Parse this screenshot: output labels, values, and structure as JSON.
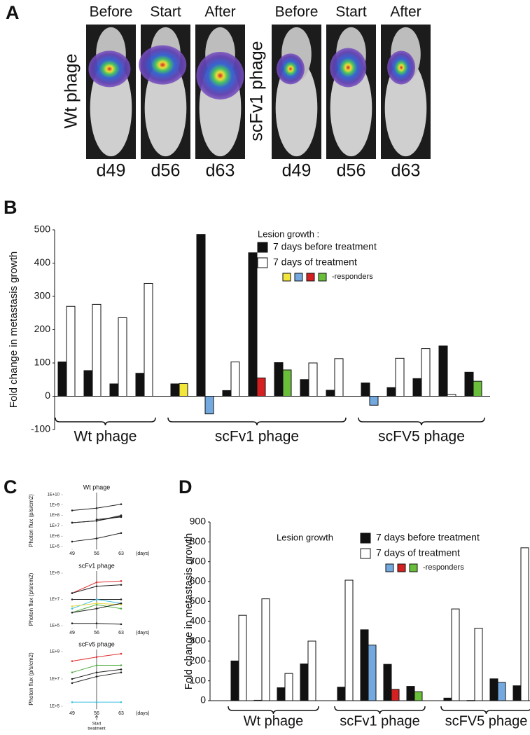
{
  "panel_labels": [
    "A",
    "B",
    "C",
    "D"
  ],
  "panel_a": {
    "groups": [
      {
        "label": "Wt phage",
        "color": "#111111",
        "images": [
          {
            "header": "Before",
            "day": "d49"
          },
          {
            "header": "Start",
            "day": "d56"
          },
          {
            "header": "After",
            "day": "d63"
          }
        ]
      },
      {
        "label": "scFv1 phage",
        "color": "#6fa8dc",
        "images": [
          {
            "header": "Before",
            "day": "d49"
          },
          {
            "header": "Start",
            "day": "d56"
          },
          {
            "header": "After",
            "day": "d63"
          }
        ]
      }
    ]
  },
  "chart_data": [
    {
      "type": "grouped-bar",
      "ylabel": "Fold change in metastasis growth",
      "ylim": [
        -100,
        500
      ],
      "yticks": [
        -100,
        0,
        100,
        200,
        300,
        400,
        500
      ],
      "legend_title": "Lesion growth :",
      "series": [
        {
          "name": "7 days before treatment",
          "color": "#111111"
        },
        {
          "name": "7 days of treatment",
          "color": "#ffffff"
        }
      ],
      "responder_colors": [
        "#f2e63a",
        "#74a9e0",
        "#d42020",
        "#6abf3a"
      ],
      "responder_label": "-responders",
      "groups": [
        {
          "label": "Wt phage",
          "values": [
            [
              103,
              77,
              37,
              69
            ],
            [
              270,
              276,
              236,
              339
            ]
          ],
          "colors": [
            [
              "#111111",
              "#111111",
              "#111111",
              "#111111"
            ],
            [
              "#ffffff",
              "#ffffff",
              "#ffffff",
              "#ffffff"
            ]
          ]
        },
        {
          "label": "scFv1 phage",
          "values": [
            [
              37,
              486,
              17,
              431,
              101,
              50,
              18
            ],
            [
              38,
              -53,
              103,
              55,
              79,
              100,
              113
            ]
          ],
          "colors": [
            [
              "#111111",
              "#111111",
              "#111111",
              "#111111",
              "#111111",
              "#111111",
              "#111111"
            ],
            [
              "#f2e63a",
              "#74a9e0",
              "#ffffff",
              "#d42020",
              "#6abf3a",
              "#ffffff",
              "#ffffff"
            ]
          ]
        },
        {
          "label": "scFV5 phage",
          "values": [
            [
              40,
              26,
              53,
              151,
              72
            ],
            [
              -27,
              114,
              143,
              5,
              45
            ]
          ],
          "colors": [
            [
              "#111111",
              "#111111",
              "#111111",
              "#111111",
              "#111111"
            ],
            [
              "#74a9e0",
              "#ffffff",
              "#ffffff",
              "#ffffff",
              "#6abf3a"
            ]
          ]
        }
      ]
    },
    {
      "type": "line",
      "title": "Wt phage",
      "ylabel": "Photon flux (p/s/cm2)",
      "xlabel": "(days)",
      "x": [
        49,
        56,
        63
      ],
      "xlim": [
        46,
        66
      ],
      "xticks": [
        49,
        56,
        63
      ],
      "log": true,
      "ylim": [
        100000,
        10000000000
      ],
      "yticks": [
        {
          "value": 100000,
          "label": "1E+5"
        },
        {
          "value": 1000000,
          "label": "1E+6"
        },
        {
          "value": 10000000,
          "label": "1E+7"
        },
        {
          "value": 100000000,
          "label": "1E+8"
        },
        {
          "value": 1000000000,
          "label": "1E+9"
        },
        {
          "value": 10000000000,
          "label": "1E+10"
        }
      ],
      "vline": 56,
      "series": [
        {
          "color": "#222222",
          "values": [
            300000000,
            500000000,
            1200000000
          ]
        },
        {
          "color": "#222222",
          "values": [
            20000000,
            30000000,
            100000000
          ]
        },
        {
          "color": "#222222",
          "values": [
            20000000,
            30000000,
            80000000
          ]
        },
        {
          "color": "#222222",
          "values": [
            null,
            40000000,
            70000000
          ]
        },
        {
          "color": "#222222",
          "values": [
            300000,
            600000,
            2000000
          ]
        }
      ]
    },
    {
      "type": "line",
      "title": "scFv1 phage",
      "ylabel": "Photon flux (p/s/cm2)",
      "xlabel": "(days)",
      "x": [
        49,
        56,
        63
      ],
      "xlim": [
        46,
        66
      ],
      "xticks": [
        49,
        56,
        63
      ],
      "log": true,
      "ylim": [
        100000,
        1000000000
      ],
      "yticks": [
        {
          "value": 100000,
          "label": "1E+5"
        },
        {
          "value": 10000000,
          "label": "1E+7"
        },
        {
          "value": 1000000000,
          "label": "1E+9"
        }
      ],
      "vline": 56,
      "series": [
        {
          "color": "#e03030",
          "values": [
            30000000,
            200000000,
            250000000
          ]
        },
        {
          "color": "#222222",
          "values": [
            30000000,
            100000000,
            130000000
          ]
        },
        {
          "color": "#222222",
          "values": [
            10000000,
            10000000,
            10000000
          ]
        },
        {
          "color": "#40c0e0",
          "values": [
            2000000,
            10000000,
            5000000
          ]
        },
        {
          "color": "#e8d840",
          "values": [
            3000000,
            5000000,
            4000000
          ]
        },
        {
          "color": "#50b040",
          "values": [
            1000000,
            4000000,
            2000000
          ]
        },
        {
          "color": "#222222",
          "values": [
            1000000,
            2000000,
            5000000
          ]
        },
        {
          "color": "#222222",
          "values": [
            150000,
            150000,
            130000
          ]
        }
      ]
    },
    {
      "type": "line",
      "title": "scFv5 phage",
      "ylabel": "Photon flux (p/s/cm2)",
      "xlabel": "(days)",
      "x": [
        49,
        56,
        63
      ],
      "xlim": [
        46,
        66
      ],
      "xticks": [
        49,
        56,
        63
      ],
      "log": true,
      "ylim": [
        100000,
        1000000000
      ],
      "yticks": [
        {
          "value": 100000,
          "label": "1E+5"
        },
        {
          "value": 10000000,
          "label": "1E+7"
        },
        {
          "value": 1000000000,
          "label": "1E+9"
        }
      ],
      "vline": 56,
      "annotation": [
        "Start",
        "treatment"
      ],
      "series": [
        {
          "color": "#e03030",
          "values": [
            200000000,
            400000000,
            700000000
          ]
        },
        {
          "color": "#50b040",
          "values": [
            30000000,
            100000000,
            100000000
          ]
        },
        {
          "color": "#222222",
          "values": [
            10000000,
            30000000,
            50000000
          ]
        },
        {
          "color": "#222222",
          "values": [
            5000000,
            15000000,
            30000000
          ]
        },
        {
          "color": "#40c0e0",
          "values": [
            200000,
            200000,
            200000
          ]
        }
      ]
    },
    {
      "type": "grouped-bar",
      "ylabel": "Fold change in metastasis growth",
      "ylim": [
        0,
        900
      ],
      "yticks": [
        0,
        100,
        200,
        300,
        400,
        500,
        600,
        700,
        800,
        900
      ],
      "legend_title": "Lesion growth",
      "series": [
        {
          "name": "7 days before treatment",
          "color": "#111111"
        },
        {
          "name": "7 days of treatment",
          "color": "#ffffff"
        }
      ],
      "responder_colors": [
        "#74a9e0",
        "#d42020",
        "#6abf3a"
      ],
      "responder_label": "-responders",
      "groups": [
        {
          "label": "Wt phage",
          "values": [
            [
              200,
              2,
              65,
              185
            ],
            [
              430,
              513,
              137,
              300
            ]
          ],
          "colors": [
            [
              "#111111",
              "#111111",
              "#111111",
              "#111111"
            ],
            [
              "#ffffff",
              "#ffffff",
              "#ffffff",
              "#ffffff"
            ]
          ]
        },
        {
          "label": "scFv1 phage",
          "values": [
            [
              68,
              357,
              183,
              72
            ],
            [
              607,
              280,
              57,
              45
            ]
          ],
          "colors": [
            [
              "#111111",
              "#111111",
              "#111111",
              "#111111"
            ],
            [
              "#ffffff",
              "#74a9e0",
              "#d42020",
              "#6abf3a"
            ]
          ]
        },
        {
          "label": "scFV5 phage",
          "values": [
            [
              13,
              1,
              110,
              75
            ],
            [
              462,
              365,
              92,
              770
            ]
          ],
          "colors": [
            [
              "#111111",
              "#111111",
              "#111111",
              "#111111"
            ],
            [
              "#ffffff",
              "#ffffff",
              "#74a9e0",
              "#ffffff"
            ]
          ]
        }
      ]
    }
  ]
}
